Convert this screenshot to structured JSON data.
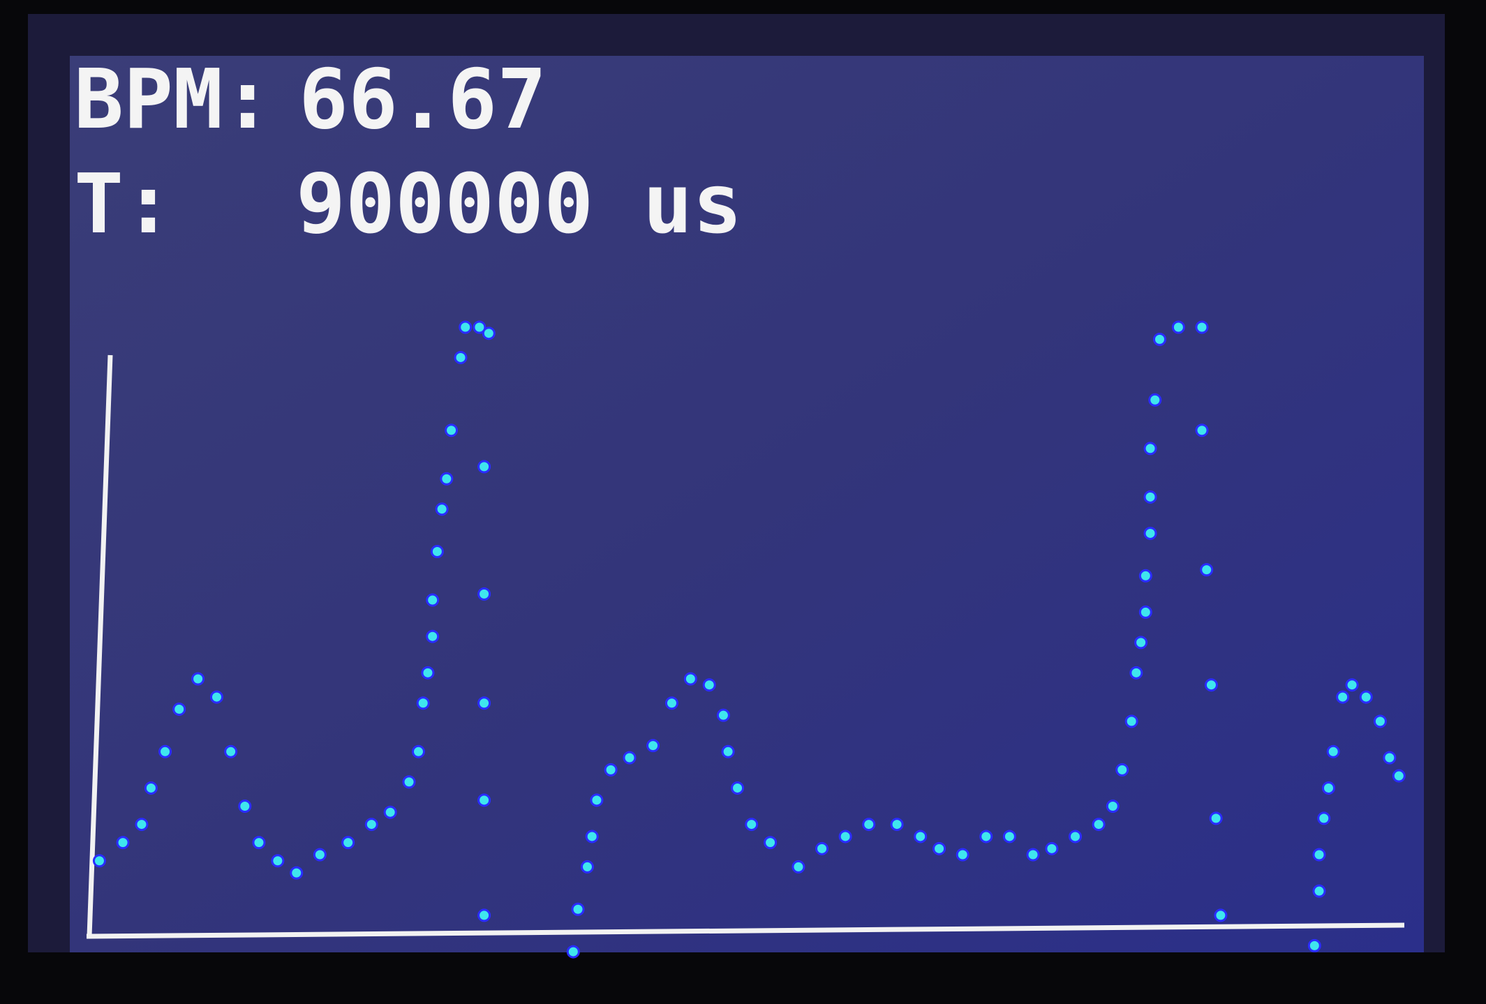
{
  "header": {
    "bpm_label": "BPM:",
    "bpm_value": "66.67",
    "period_label": "T:",
    "period_value": "900000 us"
  },
  "chart_data": {
    "type": "scatter",
    "x": [
      2,
      7,
      11,
      13,
      16,
      19,
      23,
      27,
      30,
      33,
      36,
      40,
      44,
      49,
      55,
      60,
      64,
      68,
      70,
      71,
      72,
      73,
      73,
      74,
      75,
      76,
      77,
      79,
      80,
      83,
      85,
      84,
      84,
      84,
      84,
      84,
      103,
      104,
      106,
      107,
      108,
      111,
      115,
      120,
      124,
      128,
      132,
      135,
      136,
      138,
      141,
      145,
      151,
      156,
      161,
      166,
      172,
      177,
      181,
      186,
      191,
      196,
      201,
      205,
      210,
      215,
      218,
      220,
      222,
      223,
      224,
      225,
      225,
      226,
      226,
      226,
      227,
      228,
      232,
      237,
      237,
      238,
      239,
      240,
      241,
      261,
      262,
      262,
      263,
      264,
      265,
      267,
      269,
      272,
      275,
      277,
      279
    ],
    "values": [
      12,
      15,
      18,
      24,
      30,
      37,
      42,
      39,
      30,
      21,
      15,
      12,
      10,
      13,
      15,
      18,
      20,
      25,
      30,
      38,
      43,
      49,
      55,
      63,
      70,
      75,
      83,
      95,
      100,
      100,
      99,
      77,
      56,
      38,
      22,
      3,
      -3,
      4,
      11,
      16,
      22,
      27,
      29,
      31,
      38,
      42,
      41,
      36,
      30,
      24,
      18,
      15,
      11,
      14,
      16,
      18,
      18,
      16,
      14,
      13,
      16,
      16,
      13,
      14,
      16,
      18,
      21,
      27,
      35,
      43,
      48,
      53,
      59,
      66,
      72,
      80,
      88,
      98,
      100,
      100,
      83,
      60,
      41,
      19,
      3,
      -2,
      7,
      13,
      19,
      24,
      30,
      39,
      41,
      39,
      35,
      29,
      26
    ],
    "color": "#3fe6ee",
    "xlim": [
      0,
      280
    ],
    "ylim": [
      0,
      100
    ]
  }
}
